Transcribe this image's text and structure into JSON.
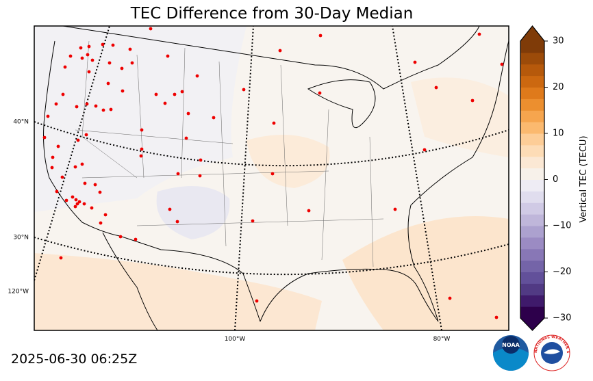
{
  "title": "TEC Difference from 30-Day Median",
  "timestamp": "2025-06-30 06:25Z",
  "map": {
    "lat_labels": [
      "40°N",
      "30°N"
    ],
    "lon_labels": [
      "120°W",
      "100°W",
      "80°W"
    ]
  },
  "colorbar": {
    "label": "Vertical TEC (TECU)",
    "clim": [
      -30,
      30
    ],
    "ticks": [
      30,
      20,
      10,
      0,
      {
        "value": -10,
        "label": "−10"
      },
      {
        "value": -20,
        "label": "−20"
      },
      {
        "value": -30,
        "label": "−30"
      }
    ],
    "under_color": "#2d004b",
    "over_color": "#7f3b08",
    "colors": [
      "#2d004b",
      "#3f1a6b",
      "#513a84",
      "#62509a",
      "#7464a8",
      "#8877b6",
      "#9b8bc3",
      "#aca1cf",
      "#bfb6da",
      "#d0cae5",
      "#e0ddee",
      "#eeecf4",
      "#f7f1ea",
      "#fbe8d4",
      "#fddcb6",
      "#fdcd97",
      "#fbb96f",
      "#f6a54e",
      "#ec8f2f",
      "#df7a1b",
      "#cc6810",
      "#b6590b",
      "#9c4b09",
      "#7f3b08"
    ]
  },
  "logos": {
    "noaa": "NOAA",
    "nws": "NATIONAL WEATHER SERVICE"
  }
}
